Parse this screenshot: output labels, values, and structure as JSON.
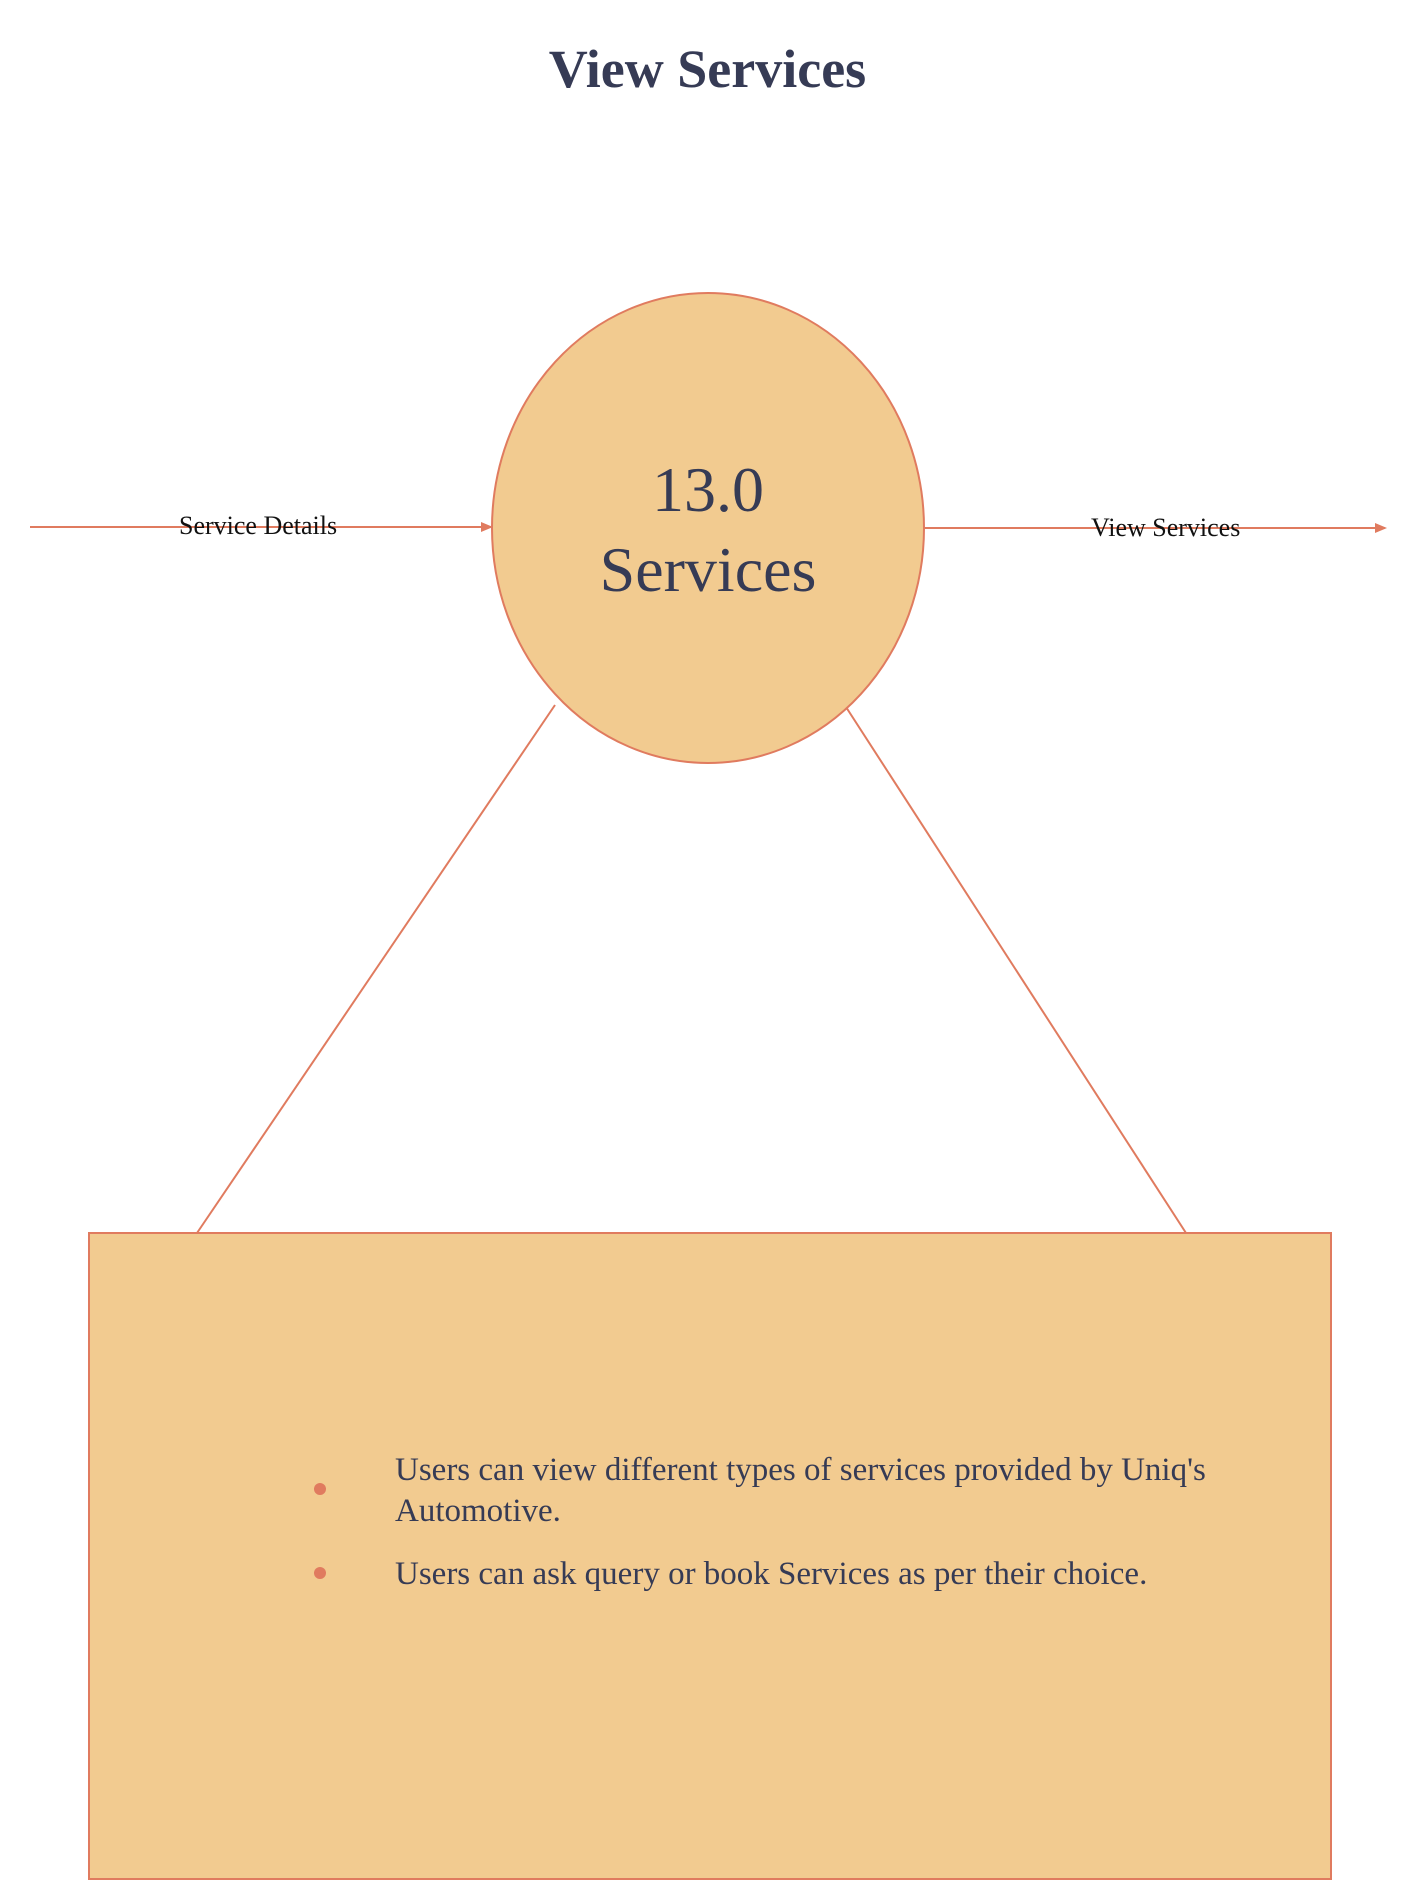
{
  "diagram": {
    "title": "View Services",
    "process": {
      "number": "13.0",
      "name": "Services"
    },
    "flows": {
      "input_label": "Service Details",
      "output_label": "View Services"
    },
    "note": {
      "items": [
        "Users can view different types of services provided by Uniq's Automotive.",
        "Users can ask query or book Services as per their  choice."
      ]
    },
    "colors": {
      "fill": "#f2cb90",
      "stroke": "#e07b5f",
      "text": "#363b55"
    }
  }
}
